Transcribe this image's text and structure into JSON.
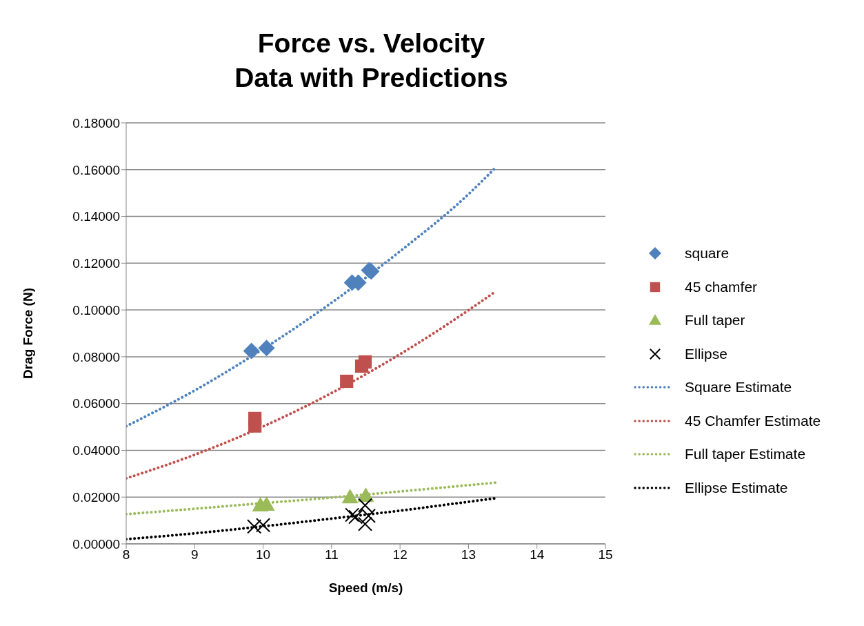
{
  "chart_data": {
    "type": "scatter",
    "title": "Force vs. Velocity\nData with Predictions",
    "xlabel": "Speed (m/s)",
    "ylabel": "Drag Force (N)",
    "xlim": [
      8,
      15
    ],
    "xticks": [
      8,
      9,
      10,
      11,
      12,
      13,
      14,
      15
    ],
    "ylim": [
      0,
      0.18
    ],
    "yticks": [
      {
        "value": 0,
        "label": "0.00000"
      },
      {
        "value": 0.02,
        "label": "0.02000"
      },
      {
        "value": 0.04,
        "label": "0.04000"
      },
      {
        "value": 0.06,
        "label": "0.06000"
      },
      {
        "value": 0.08,
        "label": "0.08000"
      },
      {
        "value": 0.1,
        "label": "0.10000"
      },
      {
        "value": 0.12,
        "label": "0.12000"
      },
      {
        "value": 0.14,
        "label": "0.14000"
      },
      {
        "value": 0.16,
        "label": "0.16000"
      },
      {
        "value": 0.18,
        "label": "0.18000"
      }
    ],
    "grid": "y",
    "legend": "right",
    "series": [
      {
        "name": "square",
        "marker": "diamond",
        "color": "#4f81bd",
        "x": [
          9.83,
          10.05,
          11.3,
          11.39,
          11.55,
          11.58
        ],
        "values": [
          0.0825,
          0.0837,
          0.1117,
          0.1117,
          0.117,
          0.1165
        ]
      },
      {
        "name": "45 chamfer",
        "marker": "square",
        "color": "#c0504d",
        "x": [
          9.88,
          9.88,
          11.22,
          11.44,
          11.49
        ],
        "values": [
          0.0536,
          0.0504,
          0.0695,
          0.076,
          0.0778
        ]
      },
      {
        "name": "Full taper",
        "marker": "triangle",
        "color": "#9bbb59",
        "x": [
          9.96,
          10.05,
          11.27,
          11.5
        ],
        "values": [
          0.0165,
          0.0168,
          0.02,
          0.0206
        ]
      },
      {
        "name": "Ellipse",
        "marker": "cross",
        "color": "#000000",
        "x": [
          9.87,
          10.0,
          11.3,
          11.35,
          11.49,
          11.54,
          11.49
        ],
        "values": [
          0.0074,
          0.008,
          0.0124,
          0.0115,
          0.0165,
          0.012,
          0.0085
        ]
      },
      {
        "name": "Square Estimate",
        "type": "line",
        "marker": "none",
        "line_style": "dotted",
        "color": "#4f81bd",
        "x": [
          8,
          9,
          10,
          11,
          12,
          13,
          13.4
        ],
        "values": [
          0.0503,
          0.0656,
          0.0833,
          0.1031,
          0.1251,
          0.1495,
          0.161
        ]
      },
      {
        "name": "45 Chamfer Estimate",
        "type": "line",
        "marker": "none",
        "line_style": "dotted",
        "color": "#c0504d",
        "x": [
          8,
          9,
          10,
          11,
          12,
          13,
          13.4
        ],
        "values": [
          0.028,
          0.0381,
          0.0502,
          0.0645,
          0.0811,
          0.0999,
          0.108
        ]
      },
      {
        "name": "Full taper Estimate",
        "type": "line",
        "marker": "none",
        "line_style": "dotted",
        "color": "#9bbb59",
        "x": [
          8,
          9,
          10,
          11,
          12,
          13,
          13.4
        ],
        "values": [
          0.0127,
          0.015,
          0.0174,
          0.0198,
          0.0224,
          0.0251,
          0.0262
        ]
      },
      {
        "name": "Ellipse Estimate",
        "type": "line",
        "marker": "none",
        "line_style": "dotted",
        "color": "#000000",
        "x": [
          8,
          9,
          10,
          11,
          12,
          13,
          13.4
        ],
        "values": [
          0.002,
          0.0045,
          0.0075,
          0.0108,
          0.0142,
          0.018,
          0.0195
        ]
      }
    ]
  }
}
